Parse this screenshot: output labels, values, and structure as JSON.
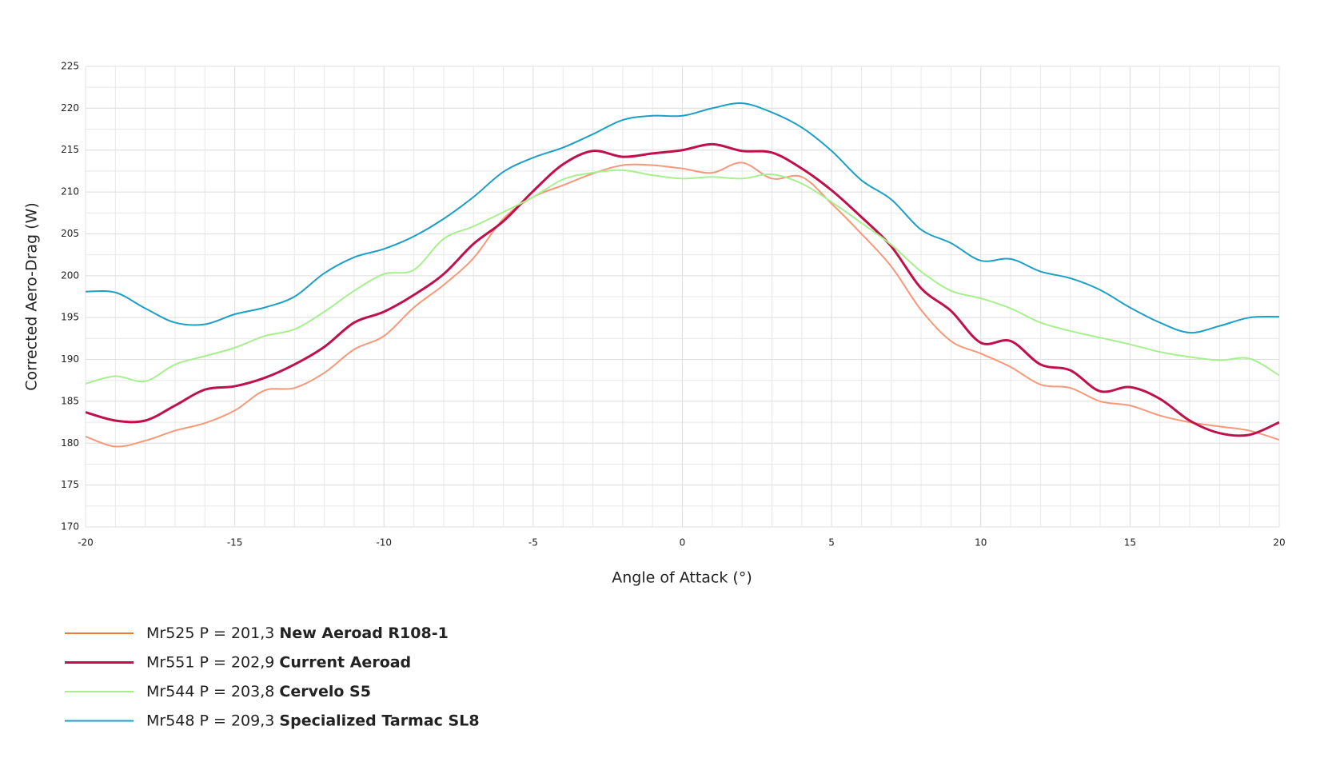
{
  "chart_data": {
    "type": "line",
    "x_label": "Angle of Attack (°)",
    "y_label": "Corrected Aero-Drag (W)",
    "x": [
      -20,
      -19,
      -18,
      -17,
      -16,
      -15,
      -14,
      -13,
      -12,
      -11,
      -10,
      -9,
      -8,
      -7,
      -6,
      -5,
      -4,
      -3,
      -2,
      -1,
      0,
      1,
      2,
      3,
      4,
      5,
      6,
      7,
      8,
      9,
      10,
      11,
      12,
      13,
      14,
      15,
      16,
      17,
      18,
      19,
      20
    ],
    "series": [
      {
        "legend_prefix": "Mr525 P = 201,3",
        "name": "New Aeroad R108-1",
        "color": "#f7987a",
        "legend_color": "#ee7d31",
        "width": 2,
        "values": [
          180.8,
          179.6,
          180.3,
          181.5,
          182.4,
          183.9,
          186.3,
          186.6,
          188.4,
          191.2,
          192.8,
          196.2,
          198.9,
          202.1,
          206.8,
          209.4,
          210.8,
          212.2,
          213.2,
          213.2,
          212.8,
          212.3,
          213.5,
          211.6,
          211.8,
          208.6,
          205.0,
          201.1,
          195.9,
          192.2,
          190.7,
          189.1,
          187.0,
          186.6,
          185.0,
          184.5,
          183.3,
          182.5,
          182.0,
          181.5,
          180.4
        ]
      },
      {
        "legend_prefix": "Mr551 P = 202,9",
        "name": "Current Aeroad",
        "color": "#c0104a",
        "legend_color": "#c0104a",
        "width": 3,
        "values": [
          183.7,
          182.7,
          182.7,
          184.5,
          186.4,
          186.8,
          187.8,
          189.4,
          191.5,
          194.4,
          195.7,
          197.7,
          200.2,
          203.8,
          206.5,
          210.1,
          213.3,
          214.9,
          214.2,
          214.6,
          215.0,
          215.7,
          214.9,
          214.7,
          212.8,
          210.2,
          207.0,
          203.5,
          198.5,
          195.8,
          192.0,
          192.2,
          189.4,
          188.7,
          186.2,
          186.7,
          185.3,
          182.7,
          181.2,
          181.0,
          182.5
        ]
      },
      {
        "legend_prefix": "Mr544 P = 203,8",
        "name": "Cervelo S5",
        "color": "#a6f08e",
        "legend_color": "#a6f08e",
        "width": 2,
        "values": [
          187.1,
          188.0,
          187.4,
          189.4,
          190.4,
          191.4,
          192.8,
          193.6,
          195.7,
          198.2,
          200.2,
          200.7,
          204.4,
          205.9,
          207.6,
          209.4,
          211.5,
          212.3,
          212.6,
          212.0,
          211.6,
          211.8,
          211.6,
          212.1,
          211.0,
          208.8,
          206.3,
          203.7,
          200.5,
          198.2,
          197.3,
          196.1,
          194.4,
          193.4,
          192.6,
          191.8,
          190.9,
          190.3,
          189.9,
          190.1,
          188.1
        ]
      },
      {
        "legend_prefix": "Mr548 P = 209,3",
        "name": "Specialized Tarmac SL8",
        "color": "#1b9fc6",
        "legend_color": "#1b9fc6",
        "width": 2,
        "values": [
          198.1,
          198.0,
          196.1,
          194.4,
          194.2,
          195.4,
          196.2,
          197.5,
          200.3,
          202.2,
          203.2,
          204.7,
          206.8,
          209.4,
          212.4,
          214.1,
          215.3,
          216.9,
          218.6,
          219.1,
          219.1,
          220.0,
          220.6,
          219.5,
          217.7,
          214.9,
          211.4,
          209.1,
          205.5,
          203.9,
          201.8,
          202.0,
          200.5,
          199.7,
          198.3,
          196.2,
          194.4,
          193.2,
          194.0,
          195.0,
          195.1
        ]
      }
    ],
    "xlim": [
      -20,
      20
    ],
    "xticks": [
      -20,
      -15,
      -10,
      -5,
      0,
      5,
      10,
      15,
      20
    ],
    "ylim": [
      170,
      225
    ],
    "yticks": [
      170,
      175,
      180,
      185,
      190,
      195,
      200,
      205,
      210,
      215,
      220,
      225
    ],
    "grid": true,
    "minor_grid": {
      "x": 1,
      "y": 2.5
    }
  }
}
